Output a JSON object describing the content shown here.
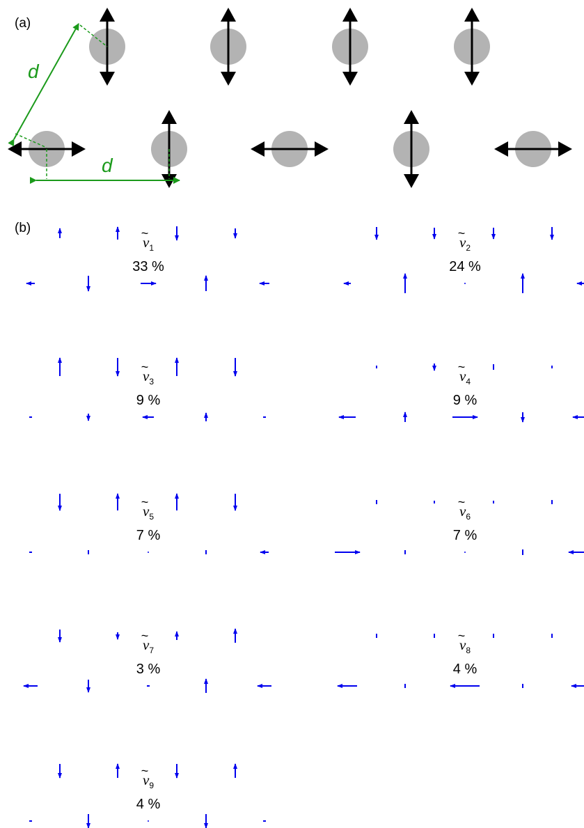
{
  "panel_a": {
    "label": "(a)",
    "distance_symbol": "d",
    "colors": {
      "particle": "#b3b3b3",
      "arrow": "#000000",
      "measure": "#1b9a1b"
    },
    "top_row_orientations": [
      "vertical",
      "vertical",
      "vertical",
      "vertical"
    ],
    "bottom_row_orientations": [
      "horizontal",
      "vertical",
      "horizontal",
      "vertical",
      "horizontal"
    ]
  },
  "panel_b": {
    "label": "(b)",
    "arrow_color": "#0000ee",
    "modes": [
      {
        "nu": "ν",
        "sub": "1",
        "pct": "33 %"
      },
      {
        "nu": "ν",
        "sub": "2",
        "pct": "24 %"
      },
      {
        "nu": "ν",
        "sub": "3",
        "pct": "9 %"
      },
      {
        "nu": "ν",
        "sub": "4",
        "pct": "9 %"
      },
      {
        "nu": "ν",
        "sub": "5",
        "pct": "7 %"
      },
      {
        "nu": "ν",
        "sub": "6",
        "pct": "7 %"
      },
      {
        "nu": "ν",
        "sub": "7",
        "pct": "3 %"
      },
      {
        "nu": "ν",
        "sub": "8",
        "pct": "4 %"
      },
      {
        "nu": "ν",
        "sub": "9",
        "pct": "4 %"
      }
    ]
  }
}
